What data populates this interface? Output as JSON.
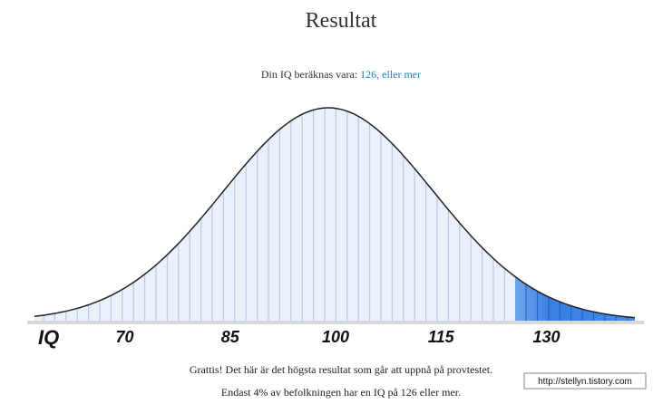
{
  "title": "Resultat",
  "result": {
    "label": "Din IQ beräknas vara:",
    "value": "126, eller mer"
  },
  "scale": {
    "label": "IQ",
    "ticks": [
      70,
      85,
      100,
      115,
      130
    ]
  },
  "messages": [
    "Grattis! Det här är det högsta resultat som går att uppnå på provtestet.",
    "Endast 4% av befolkningen har en IQ på 126 eller mer."
  ],
  "watermark": "http://stellyn.tistory.com"
}
